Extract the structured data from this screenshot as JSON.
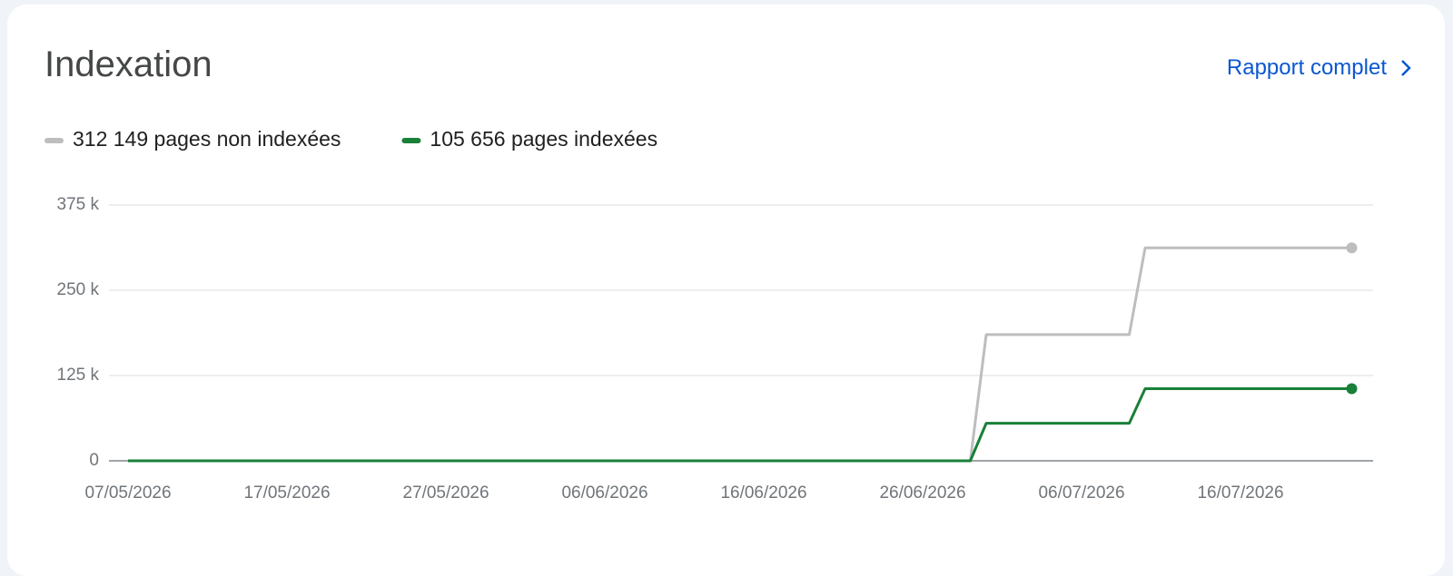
{
  "header": {
    "title": "Indexation",
    "link": "Rapport complet"
  },
  "chart_data": {
    "type": "line",
    "x": [
      "07/05/2026",
      "29/06/2026",
      "30/06/2026",
      "09/07/2026",
      "10/07/2026",
      "23/07/2026"
    ],
    "series": [
      {
        "name": "312 149 pages non indexées",
        "color": "#bdbdbd",
        "values": [
          0,
          0,
          185000,
          185000,
          312149,
          312149
        ]
      },
      {
        "name": "105 656 pages indexées",
        "color": "#188038",
        "values": [
          0,
          0,
          55000,
          55000,
          105656,
          105656
        ]
      }
    ],
    "xlim": [
      "06/05/2026",
      "25/07/2026"
    ],
    "xticks": [
      "07/05/2026",
      "17/05/2026",
      "27/05/2026",
      "06/06/2026",
      "16/06/2026",
      "26/06/2026",
      "06/07/2026",
      "16/07/2026"
    ],
    "ylim": [
      0,
      375000
    ],
    "yticks": [
      0,
      {
        "value": 125000,
        "label": "125 k"
      },
      {
        "value": 250000,
        "label": "250 k"
      },
      {
        "value": 375000,
        "label": "375 k"
      }
    ],
    "grid": true
  }
}
